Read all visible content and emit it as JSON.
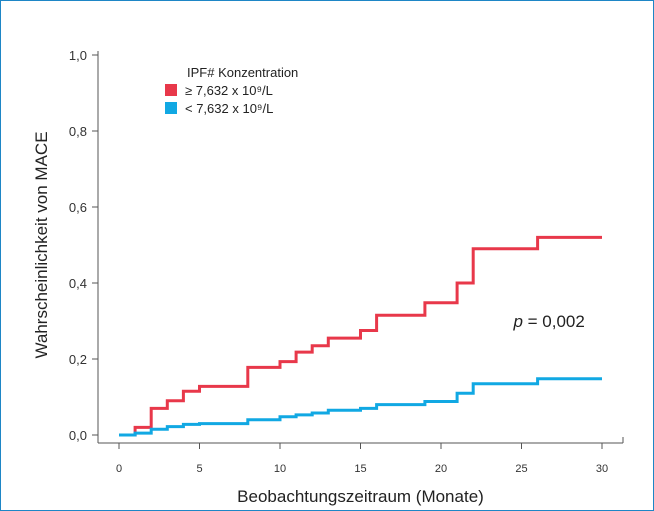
{
  "chart_data": {
    "type": "line",
    "step": true,
    "xlabel": "Beobachtungszeitraum (Monate)",
    "ylabel": "Wahrscheinlichkeit von MACE",
    "xlim": [
      0,
      30
    ],
    "ylim": [
      0.0,
      1.0
    ],
    "x_ticks": [
      0,
      5,
      10,
      15,
      20,
      25,
      30
    ],
    "x_tick_labels": [
      "0",
      "5",
      "10",
      "15",
      "20",
      "25",
      "30"
    ],
    "y_ticks": [
      0.0,
      0.2,
      0.4,
      0.6,
      0.8,
      1.0
    ],
    "y_tick_labels": [
      "0,0",
      "0,2",
      "0,4",
      "0,6",
      "0,8",
      "1,0"
    ],
    "legend": {
      "title": "IPF# Konzentration",
      "placement": "top-left"
    },
    "series": [
      {
        "name": "≥ 7,632 x 10⁹/L",
        "color": "#e8384a",
        "x": [
          0,
          1,
          2,
          3,
          4,
          5,
          8,
          10,
          11,
          12,
          13,
          15,
          16,
          19,
          21,
          22,
          26,
          30
        ],
        "y": [
          0,
          0.02,
          0.07,
          0.09,
          0.115,
          0.128,
          0.178,
          0.193,
          0.218,
          0.235,
          0.255,
          0.275,
          0.315,
          0.348,
          0.4,
          0.49,
          0.52,
          0.52
        ]
      },
      {
        "name": "< 7,632 x 10⁹/L",
        "color": "#11a8e3",
        "x": [
          0,
          1,
          2,
          3,
          4,
          5,
          8,
          10,
          11,
          12,
          13,
          15,
          16,
          19,
          21,
          22,
          26,
          30
        ],
        "y": [
          0,
          0.005,
          0.015,
          0.022,
          0.028,
          0.03,
          0.04,
          0.048,
          0.053,
          0.058,
          0.065,
          0.07,
          0.08,
          0.088,
          0.11,
          0.135,
          0.148,
          0.148
        ]
      }
    ],
    "annotations": [
      {
        "p_symbol": "p",
        "p_text": " = 0,002",
        "x": 24.5,
        "y": 0.3
      }
    ],
    "grid": false
  }
}
